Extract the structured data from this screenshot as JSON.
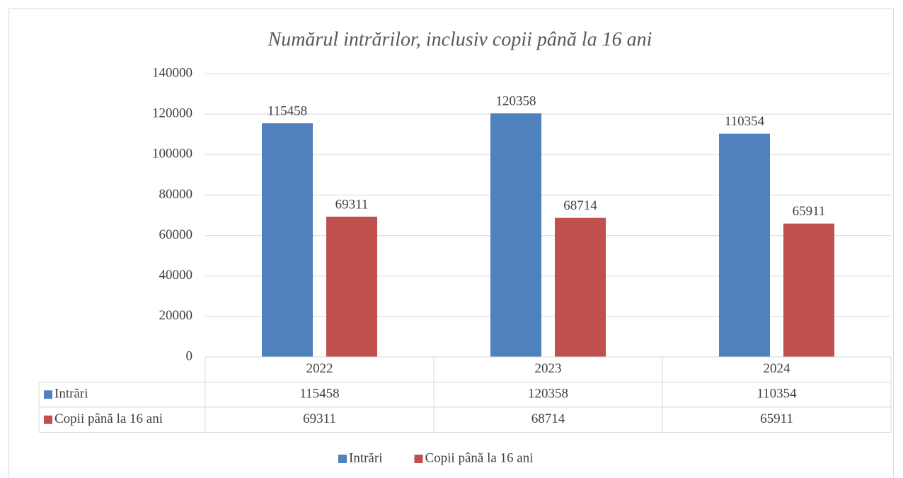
{
  "chart_data": {
    "type": "bar",
    "title": "Numărul intrărilor, inclusiv copii până la 16 ani",
    "categories": [
      "2022",
      "2023",
      "2024"
    ],
    "series": [
      {
        "name": "Intrări",
        "color": "#4f81bd",
        "values": [
          115458,
          120358,
          110354
        ]
      },
      {
        "name": "Copii până la 16 ani",
        "color": "#c0504d",
        "values": [
          69311,
          68714,
          65911
        ]
      }
    ],
    "ylim": [
      0,
      140000
    ],
    "yticks": [
      0,
      20000,
      40000,
      60000,
      80000,
      100000,
      120000,
      140000
    ],
    "grid": true,
    "legend": "bottom",
    "data_table": true
  }
}
